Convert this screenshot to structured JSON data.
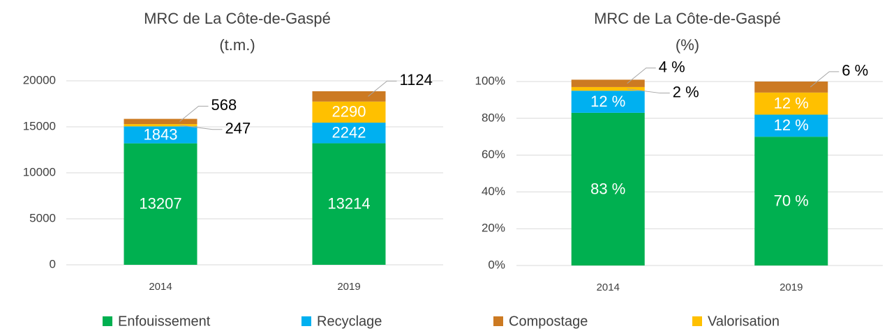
{
  "chart_data": [
    {
      "type": "stacked_bar",
      "title": [
        "MRC de La Côte-de-Gaspé",
        "(t.m.)"
      ],
      "categories": [
        "2014",
        "2019"
      ],
      "series": [
        {
          "name": "Enfouissement",
          "color": "#00b050",
          "values": [
            13207,
            13214
          ]
        },
        {
          "name": "Recyclage",
          "color": "#00b0f0",
          "values": [
            1843,
            2242
          ]
        },
        {
          "name": "Valorisation",
          "color": "#ffc000",
          "values": [
            247,
            2290
          ]
        },
        {
          "name": "Compostage",
          "color": "#cc7a22",
          "values": [
            568,
            1124
          ]
        }
      ],
      "ylim": [
        0,
        20000
      ],
      "yticks": [
        0,
        5000,
        10000,
        15000,
        20000
      ],
      "grid": true,
      "legend_series": [
        0,
        1
      ]
    },
    {
      "type": "stacked_bar",
      "title": [
        "MRC de La Côte-de-Gaspé",
        "(%)"
      ],
      "categories": [
        "2014",
        "2019"
      ],
      "series": [
        {
          "name": "Enfouissement",
          "color": "#00b050",
          "values": [
            83,
            70
          ],
          "value_labels": [
            "83 %",
            "70 %"
          ]
        },
        {
          "name": "Recyclage",
          "color": "#00b0f0",
          "values": [
            12,
            12
          ],
          "value_labels": [
            "12 %",
            "12 %"
          ]
        },
        {
          "name": "Valorisation",
          "color": "#ffc000",
          "values": [
            2,
            12
          ],
          "value_labels": [
            "2 %",
            "12 %"
          ]
        },
        {
          "name": "Compostage",
          "color": "#cc7a22",
          "values": [
            4,
            6
          ],
          "value_labels": [
            "4 %",
            "6 %"
          ]
        }
      ],
      "ylim": [
        0,
        100
      ],
      "yticks": [
        {
          "value": 0,
          "label": "0%"
        },
        {
          "value": 20,
          "label": "20%"
        },
        {
          "value": 40,
          "label": "40%"
        },
        {
          "value": 60,
          "label": "60%"
        },
        {
          "value": 80,
          "label": "80%"
        },
        {
          "value": 100,
          "label": "100%"
        }
      ],
      "grid": true,
      "legend_series": [
        3,
        2
      ]
    }
  ]
}
